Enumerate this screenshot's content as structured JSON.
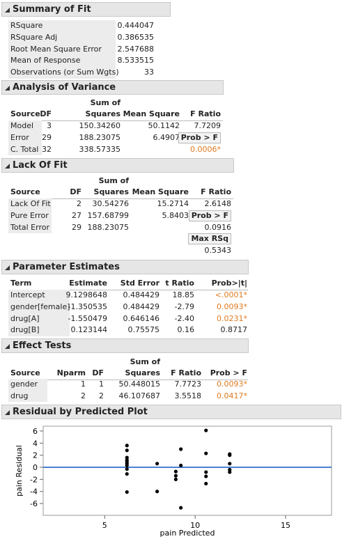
{
  "summary_of_fit": {
    "title": "Summary of Fit",
    "rows": [
      [
        "RSquare",
        "0.444047"
      ],
      [
        "RSquare Adj",
        "0.386535"
      ],
      [
        "Root Mean Square Error",
        "2.547688"
      ],
      [
        "Mean of Response",
        "8.533515"
      ],
      [
        "Observations (or Sum Wgts)",
        "33"
      ]
    ]
  },
  "analysis_of_variance": {
    "title": "Analysis of Variance",
    "header": [
      "Source",
      "DF",
      "Sum of Squares",
      "Mean Square",
      "F Ratio"
    ],
    "rows": [
      [
        "Model",
        "3",
        "150.34260",
        "50.1142",
        "7.7209"
      ],
      [
        "Error",
        "29",
        "188.23075",
        "6.4907",
        "Prob > F"
      ],
      [
        "C. Total",
        "32",
        "338.57335",
        null,
        "0.0006*"
      ]
    ]
  },
  "lack_of_fit": {
    "title": "Lack Of Fit",
    "header": [
      "Source",
      "DF",
      "Sum of Squares",
      "Mean Square",
      "F Ratio"
    ],
    "rows": [
      [
        "Lack Of Fit",
        "2",
        "30.54276",
        "15.2714",
        "2.6148"
      ],
      [
        "Pure Error",
        "27",
        "157.68799",
        "5.8403",
        "Prob > F"
      ],
      [
        "Total Error",
        "29",
        "188.23075",
        null,
        "0.0916"
      ],
      [
        null,
        null,
        null,
        null,
        "Max RSq"
      ],
      [
        null,
        null,
        null,
        null,
        "0.5343"
      ]
    ]
  },
  "parameter_estimates": {
    "title": "Parameter Estimates",
    "header": [
      "Term",
      "Estimate",
      "Std Error",
      "t Ratio",
      "Prob>|t|"
    ],
    "rows": [
      [
        "Intercept",
        "9.1298648",
        "0.484429",
        "18.85",
        "<.0001*"
      ],
      [
        "gender[female]",
        "-1.350535",
        "0.484429",
        "-2.79",
        "0.0093*"
      ],
      [
        "drug[A]",
        "-1.550479",
        "0.646146",
        "-2.40",
        "0.0231*"
      ],
      [
        "drug[B]",
        "0.123144",
        "0.75575",
        "0.16",
        "0.8717"
      ]
    ]
  },
  "effect_tests": {
    "title": "Effect Tests",
    "header": [
      "Source",
      "Nparm",
      "DF",
      "Sum of Squares",
      "F Ratio",
      "Prob > F"
    ],
    "rows": [
      [
        "gender",
        "1",
        "1",
        "50.448015",
        "7.7723",
        "0.0093*"
      ],
      [
        "drug",
        "2",
        "2",
        "46.107687",
        "3.5518",
        "0.0417*"
      ]
    ]
  },
  "chart_data": {
    "type": "scatter",
    "title": "Residual by Predicted Plot",
    "x_label": "pain Predicted",
    "y_label": "pain Residual",
    "x": [
      6.23,
      6.23,
      6.23,
      6.23,
      6.23,
      6.23,
      6.23,
      6.23,
      6.23,
      6.23,
      7.9,
      7.9,
      8.93,
      8.93,
      8.93,
      9.21,
      9.21,
      9.21,
      10.6,
      10.6,
      10.6,
      10.6,
      10.6,
      11.91,
      11.91,
      11.91,
      11.91,
      11.91
    ],
    "y": [
      3.6,
      2.8,
      1.6,
      1.2,
      0.9,
      0.6,
      0.3,
      -0.3,
      -1.1,
      -4.1,
      0.6,
      -4.0,
      -0.7,
      -1.4,
      -2.0,
      3.0,
      0.3,
      -6.7,
      6.1,
      2.3,
      -0.8,
      -1.5,
      -2.7,
      2.2,
      2.0,
      0.6,
      -0.4,
      -0.8
    ],
    "color": "#000000",
    "xlim": [
      1.6,
      17.54
    ],
    "ylim": [
      -7.95,
      6.8
    ],
    "xticks": [
      5,
      10,
      15
    ],
    "yticks": [
      -6,
      -4,
      -2,
      0,
      2,
      4,
      6
    ],
    "reference_line": {
      "value": 0,
      "color": "#4a7fd4"
    }
  }
}
